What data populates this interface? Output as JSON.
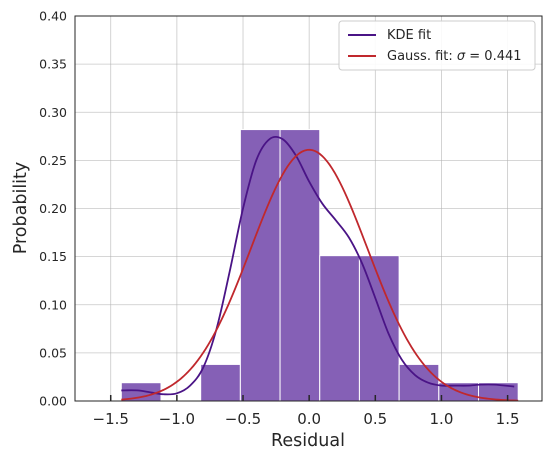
{
  "chart_data": {
    "type": "bar",
    "xlabel": "Residual",
    "ylabel": "Probability",
    "xlim": [
      -1.77,
      1.76
    ],
    "ylim": [
      0,
      0.4
    ],
    "xticks": [
      -1.5,
      -1.0,
      -0.5,
      0.0,
      0.5,
      1.0,
      1.5
    ],
    "xtick_labels": [
      "−1.5",
      "−1.0",
      "−0.5",
      "0.0",
      "0.5",
      "1.0",
      "1.5"
    ],
    "yticks": [
      0.0,
      0.05,
      0.1,
      0.15,
      0.2,
      0.25,
      0.3,
      0.35,
      0.4
    ],
    "ytick_labels": [
      "0.00",
      "0.05",
      "0.10",
      "0.15",
      "0.20",
      "0.25",
      "0.30",
      "0.35",
      "0.40"
    ],
    "grid": true,
    "histogram": {
      "bin_edges": [
        -1.42,
        -1.12,
        -0.82,
        -0.52,
        -0.22,
        0.08,
        0.38,
        0.68,
        0.98,
        1.28,
        1.58
      ],
      "values": [
        0.019,
        0.0,
        0.038,
        0.282,
        0.282,
        0.151,
        0.151,
        0.038,
        0.019,
        0.019
      ],
      "color": "#8560b6"
    },
    "series": [
      {
        "name": "KDE fit",
        "color": "#4a1486",
        "x": [
          -1.42,
          -1.3,
          -1.2,
          -1.1,
          -1.0,
          -0.9,
          -0.8,
          -0.7,
          -0.6,
          -0.5,
          -0.4,
          -0.3,
          -0.2,
          -0.1,
          0.0,
          0.1,
          0.2,
          0.3,
          0.4,
          0.5,
          0.6,
          0.7,
          0.8,
          0.9,
          1.0,
          1.1,
          1.2,
          1.3,
          1.4,
          1.55
        ],
        "y": [
          0.011,
          0.011,
          0.009,
          0.007,
          0.008,
          0.016,
          0.035,
          0.075,
          0.135,
          0.2,
          0.25,
          0.272,
          0.272,
          0.255,
          0.228,
          0.205,
          0.188,
          0.17,
          0.143,
          0.107,
          0.07,
          0.043,
          0.027,
          0.019,
          0.016,
          0.016,
          0.016,
          0.017,
          0.017,
          0.015
        ]
      },
      {
        "name": "Gauss. fit: σ = 0.441",
        "color": "#c0282d",
        "mu": 0.0,
        "sigma": 0.441,
        "amplitude": 0.261,
        "x_range": [
          -1.42,
          1.58
        ]
      }
    ],
    "legend": {
      "position": "top-right",
      "entries": [
        {
          "label": "KDE fit",
          "color": "#4a1486"
        },
        {
          "label_prefix": "Gauss. fit: ",
          "label_symbol": "σ",
          "label_suffix": " = 0.441",
          "color": "#c0282d"
        }
      ]
    }
  }
}
